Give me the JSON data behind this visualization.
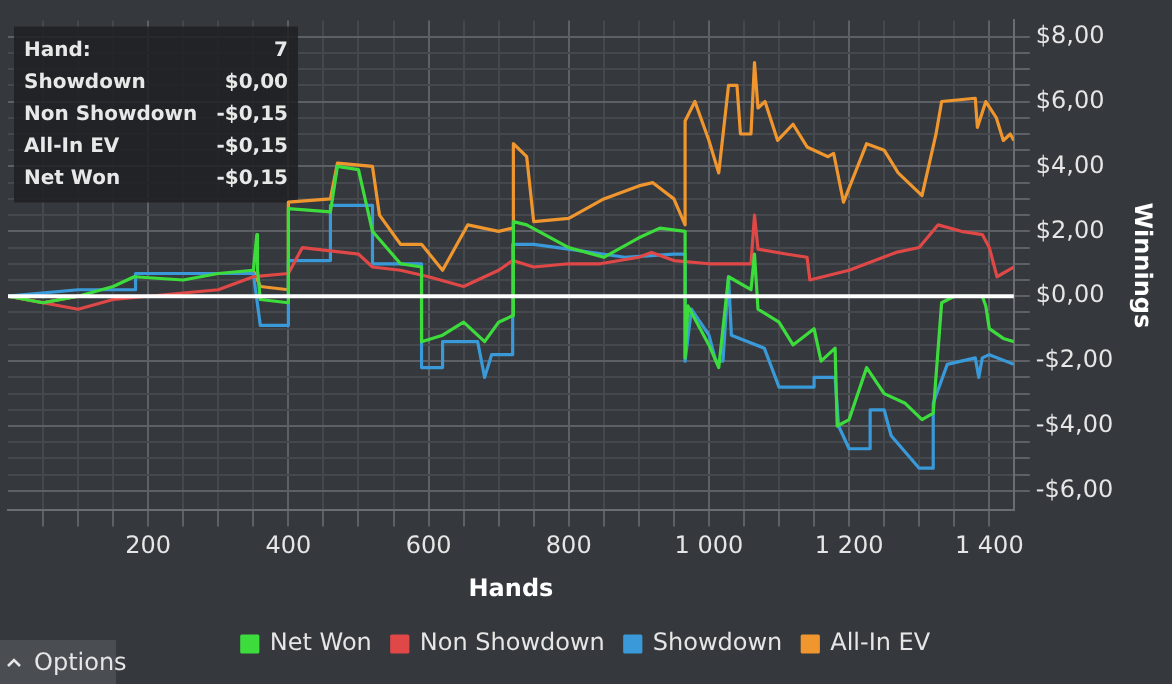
{
  "chart_data": {
    "type": "line",
    "xlabel": "Hands",
    "ylabel": "Winnings",
    "xlim": [
      0,
      1435
    ],
    "ylim": [
      -6.6,
      8.5
    ],
    "xticks": [
      {
        "value": 50,
        "label": null
      },
      {
        "value": 100,
        "label": null
      },
      {
        "value": 150,
        "label": null
      },
      {
        "value": 200,
        "label": "200"
      },
      {
        "value": 250,
        "label": null
      },
      {
        "value": 300,
        "label": null
      },
      {
        "value": 350,
        "label": null
      },
      {
        "value": 400,
        "label": "400"
      },
      {
        "value": 450,
        "label": null
      },
      {
        "value": 500,
        "label": null
      },
      {
        "value": 550,
        "label": null
      },
      {
        "value": 600,
        "label": "600"
      },
      {
        "value": 650,
        "label": null
      },
      {
        "value": 700,
        "label": null
      },
      {
        "value": 750,
        "label": null
      },
      {
        "value": 800,
        "label": "800"
      },
      {
        "value": 850,
        "label": null
      },
      {
        "value": 900,
        "label": null
      },
      {
        "value": 950,
        "label": null
      },
      {
        "value": 1000,
        "label": "1 000"
      },
      {
        "value": 1050,
        "label": null
      },
      {
        "value": 1100,
        "label": null
      },
      {
        "value": 1150,
        "label": null
      },
      {
        "value": 1200,
        "label": "1 200"
      },
      {
        "value": 1250,
        "label": null
      },
      {
        "value": 1300,
        "label": null
      },
      {
        "value": 1350,
        "label": null
      },
      {
        "value": 1400,
        "label": "1 400"
      }
    ],
    "yticks": [
      {
        "value": -6,
        "label": "-$6,00"
      },
      {
        "value": -5.5,
        "label": null
      },
      {
        "value": -5,
        "label": null
      },
      {
        "value": -4.5,
        "label": null
      },
      {
        "value": -4,
        "label": "-$4,00"
      },
      {
        "value": -3.5,
        "label": null
      },
      {
        "value": -3,
        "label": null
      },
      {
        "value": -2.5,
        "label": null
      },
      {
        "value": -2,
        "label": "-$2,00"
      },
      {
        "value": -1.5,
        "label": null
      },
      {
        "value": -1,
        "label": null
      },
      {
        "value": -0.5,
        "label": null
      },
      {
        "value": 0,
        "label": "$0,00"
      },
      {
        "value": 0.5,
        "label": null
      },
      {
        "value": 1,
        "label": null
      },
      {
        "value": 1.5,
        "label": null
      },
      {
        "value": 2,
        "label": "$2,00"
      },
      {
        "value": 2.5,
        "label": null
      },
      {
        "value": 3,
        "label": null
      },
      {
        "value": 3.5,
        "label": null
      },
      {
        "value": 4,
        "label": "$4,00"
      },
      {
        "value": 4.5,
        "label": null
      },
      {
        "value": 5,
        "label": null
      },
      {
        "value": 5.5,
        "label": null
      },
      {
        "value": 6,
        "label": "$6,00"
      },
      {
        "value": 6.5,
        "label": null
      },
      {
        "value": 7,
        "label": null
      },
      {
        "value": 7.5,
        "label": null
      },
      {
        "value": 8,
        "label": "$8,00"
      }
    ],
    "grid": true,
    "legend": "bottom",
    "marker": "none",
    "ref_lines": [
      {
        "axis": "y",
        "value": 0,
        "color": "#ffffff"
      }
    ],
    "annotations": [
      "Hand:",
      "7",
      "Showdown",
      "$0,00",
      "Non Showdown",
      "-$0,15",
      "All-In EV",
      "-$0,15",
      "Net Won",
      "-$0,15",
      "Options"
    ],
    "series": [
      {
        "name": "Net Won",
        "color": "#3ddc3d",
        "x": [
          0,
          50,
          100,
          150,
          180,
          250,
          300,
          350,
          355,
          356,
          360,
          400,
          400,
          460,
          470,
          500,
          520,
          560,
          590,
          590,
          620,
          650,
          680,
          700,
          720,
          721,
          740,
          800,
          850,
          900,
          930,
          966,
          966,
          970,
          1000,
          1014,
          1028,
          1060,
          1065,
          1070,
          1100,
          1120,
          1150,
          1160,
          1180,
          1183,
          1200,
          1225,
          1250,
          1280,
          1304,
          1320,
          1332,
          1350,
          1390,
          1395,
          1400,
          1420,
          1435
        ],
        "values": [
          0,
          -0.2,
          0,
          0.3,
          0.6,
          0.5,
          0.7,
          0.8,
          1.9,
          0.8,
          -0.1,
          -0.2,
          2.7,
          2.6,
          4.0,
          3.9,
          2.0,
          1.0,
          0.9,
          -1.4,
          -1.2,
          -0.8,
          -1.4,
          -0.8,
          -0.6,
          2.3,
          2.2,
          1.5,
          1.2,
          1.8,
          2.1,
          2.0,
          -1.9,
          -0.3,
          -1.5,
          -2.2,
          0.6,
          0.2,
          1.3,
          -0.4,
          -0.8,
          -1.5,
          -1.0,
          -2.0,
          -1.6,
          -4.0,
          -3.8,
          -2.2,
          -3.0,
          -3.3,
          -3.8,
          -3.6,
          -0.2,
          0,
          0,
          -0.3,
          -1.0,
          -1.3,
          -1.4
        ]
      },
      {
        "name": "Non Showdown",
        "color": "#e04848",
        "x": [
          0,
          50,
          100,
          150,
          200,
          250,
          300,
          350,
          400,
          420,
          500,
          520,
          560,
          600,
          650,
          700,
          720,
          750,
          800,
          845,
          900,
          918,
          950,
          1000,
          1060,
          1065,
          1070,
          1110,
          1140,
          1144,
          1200,
          1267,
          1300,
          1327,
          1360,
          1390,
          1400,
          1411,
          1435
        ],
        "values": [
          0,
          -0.2,
          -0.4,
          -0.1,
          0,
          0.1,
          0.2,
          0.6,
          0.7,
          1.5,
          1.3,
          0.9,
          0.8,
          0.6,
          0.3,
          0.8,
          1.1,
          0.9,
          1.0,
          1.0,
          1.2,
          1.35,
          1.1,
          1.0,
          1.0,
          2.5,
          1.45,
          1.3,
          1.2,
          0.5,
          0.8,
          1.35,
          1.5,
          2.2,
          2.0,
          1.9,
          1.5,
          0.6,
          0.9
        ]
      },
      {
        "name": "Showdown",
        "color": "#3a9ad9",
        "x": [
          0,
          100,
          180,
          182,
          350,
          360,
          400,
          400,
          460,
          460,
          520,
          520,
          560,
          590,
          590,
          620,
          620,
          670,
          680,
          690,
          700,
          720,
          720,
          750,
          800,
          880,
          950,
          966,
          966,
          975,
          1000,
          1010,
          1020,
          1028,
          1032,
          1079,
          1100,
          1150,
          1150,
          1180,
          1185,
          1200,
          1230,
          1230,
          1250,
          1260,
          1280,
          1300,
          1320,
          1320,
          1340,
          1380,
          1385,
          1390,
          1400,
          1435
        ],
        "values": [
          0,
          0.2,
          0.2,
          0.7,
          0.7,
          -0.9,
          -0.9,
          1.1,
          1.1,
          2.8,
          2.8,
          1.0,
          1.0,
          1.0,
          -2.2,
          -2.2,
          -1.4,
          -1.4,
          -2.5,
          -1.8,
          -1.8,
          -1.8,
          1.6,
          1.6,
          1.45,
          1.2,
          1.3,
          1.3,
          -2.0,
          -0.4,
          -1.2,
          -2.0,
          -2.0,
          0.6,
          -1.2,
          -1.6,
          -2.8,
          -2.8,
          -2.5,
          -2.5,
          -4.0,
          -4.7,
          -4.7,
          -3.5,
          -3.5,
          -4.3,
          -4.8,
          -5.3,
          -5.3,
          -3.3,
          -2.1,
          -1.9,
          -2.5,
          -1.9,
          -1.8,
          -2.1
        ]
      },
      {
        "name": "All-In EV",
        "color": "#f0962e",
        "x": [
          0,
          50,
          100,
          150,
          180,
          250,
          300,
          350,
          360,
          400,
          400,
          460,
          470,
          520,
          530,
          560,
          590,
          620,
          656,
          700,
          720,
          721,
          740,
          750,
          800,
          850,
          900,
          920,
          950,
          966,
          966,
          980,
          1000,
          1014,
          1028,
          1040,
          1045,
          1060,
          1065,
          1070,
          1080,
          1098,
          1120,
          1140,
          1170,
          1178,
          1192,
          1225,
          1250,
          1270,
          1304,
          1324,
          1332,
          1380,
          1383,
          1395,
          1410,
          1420,
          1430,
          1435
        ],
        "values": [
          0,
          -0.2,
          0,
          null,
          null,
          null,
          null,
          0.8,
          0.3,
          0.2,
          2.9,
          3.0,
          4.1,
          4.0,
          2.5,
          1.6,
          1.6,
          0.8,
          2.2,
          2.0,
          2.1,
          4.7,
          4.3,
          2.3,
          2.4,
          3.0,
          3.4,
          3.5,
          3.0,
          2.2,
          5.4,
          6.0,
          4.8,
          3.8,
          6.5,
          6.5,
          5.0,
          5.0,
          7.2,
          5.8,
          6.0,
          4.8,
          5.3,
          4.6,
          4.3,
          4.4,
          2.9,
          4.7,
          4.5,
          3.8,
          3.1,
          5.0,
          6.0,
          6.1,
          5.2,
          6.0,
          5.5,
          4.8,
          5.0,
          4.8
        ]
      }
    ]
  }
}
